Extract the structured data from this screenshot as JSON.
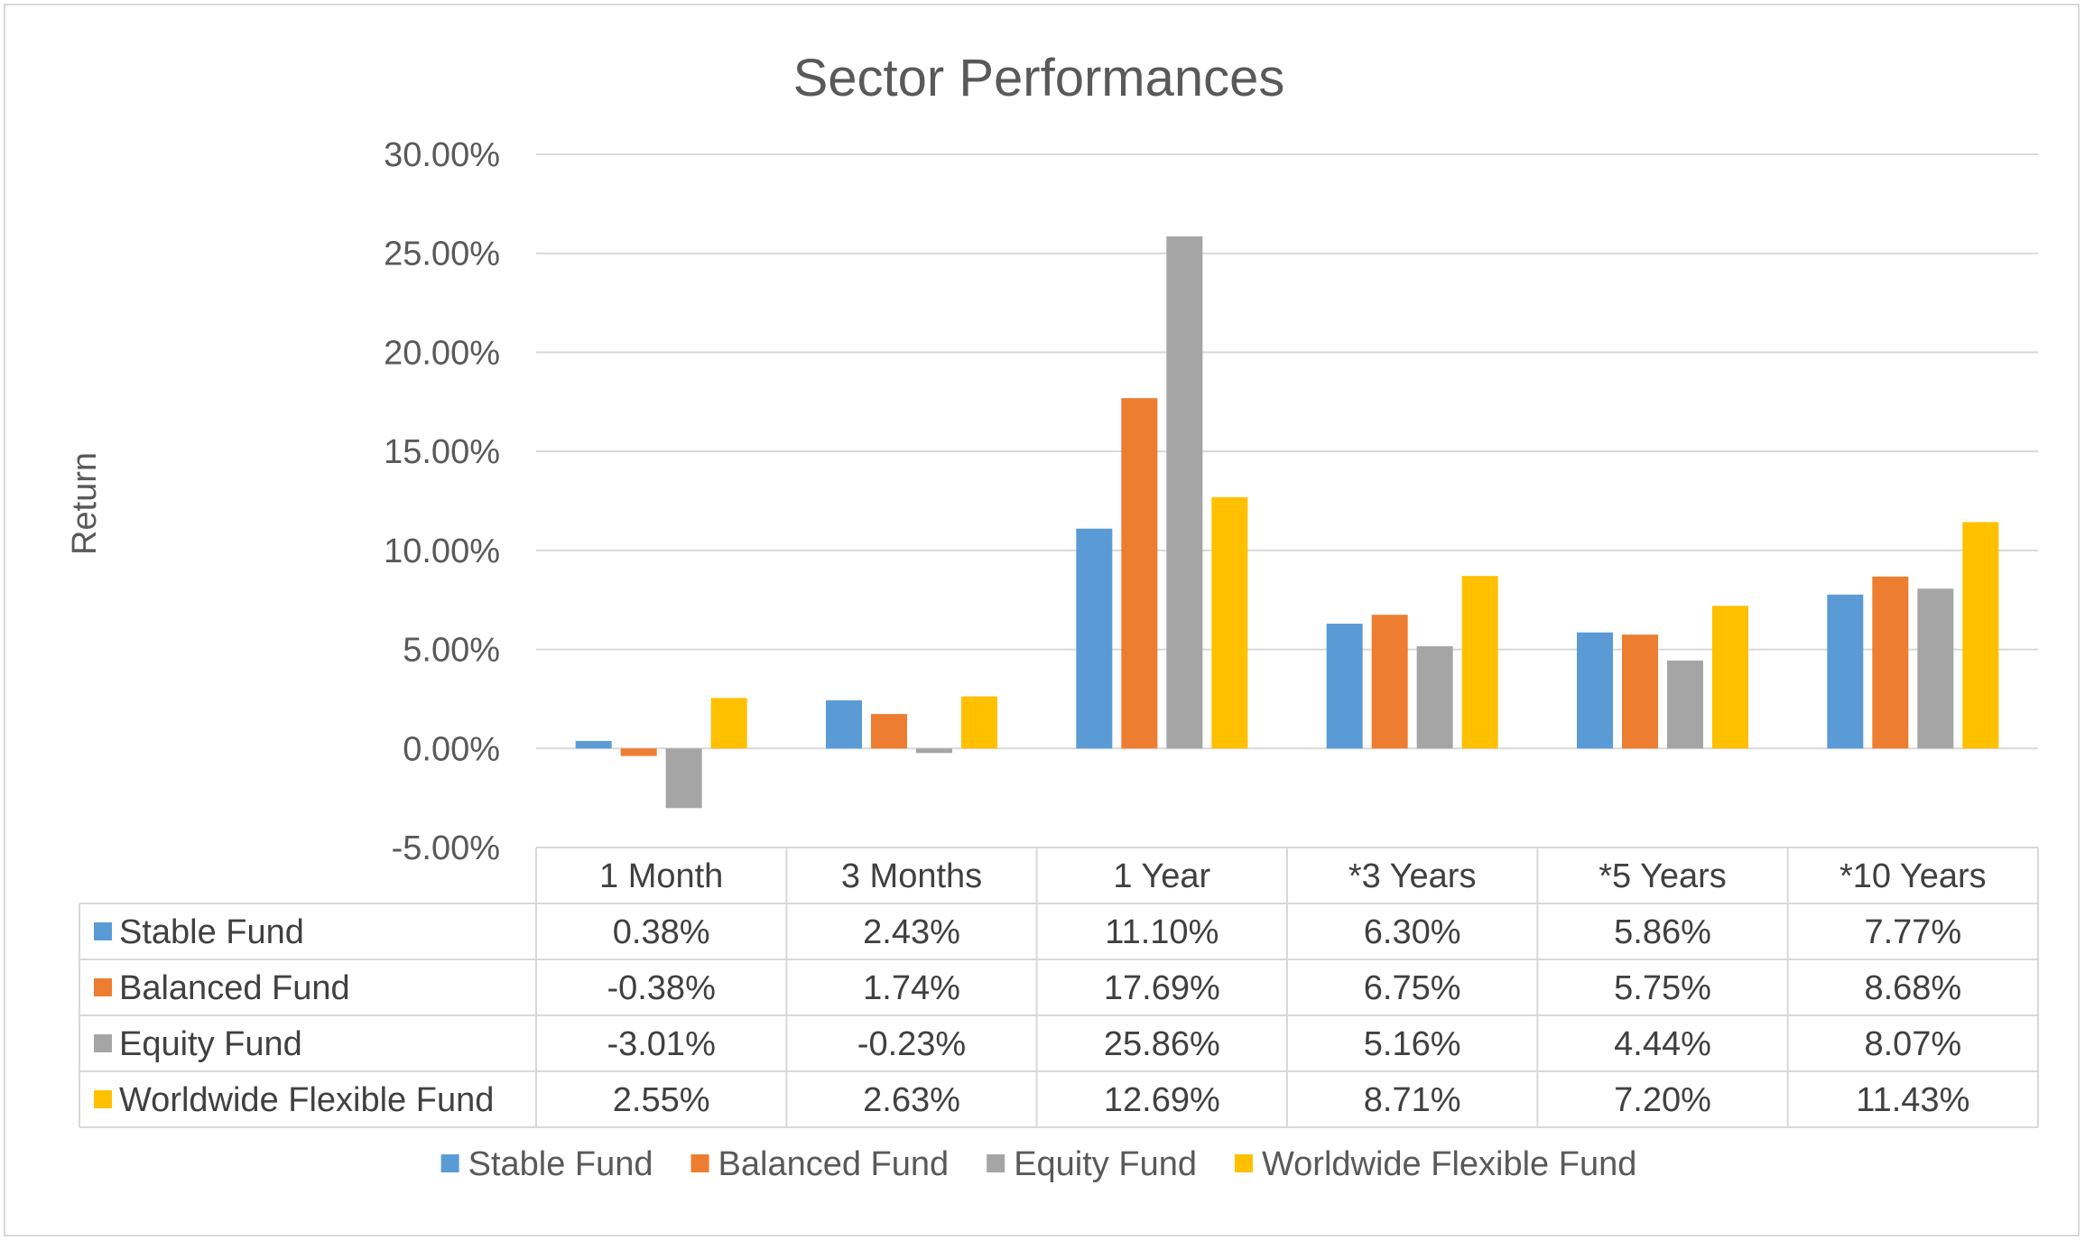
{
  "chart_data": {
    "type": "bar",
    "title": "Sector Performances",
    "xlabel": "",
    "ylabel": "Return",
    "ylim": [
      -0.05,
      0.3
    ],
    "yticks": [
      "-5.00%",
      "0.00%",
      "5.00%",
      "10.00%",
      "15.00%",
      "20.00%",
      "25.00%",
      "30.00%"
    ],
    "ytick_values": [
      -0.05,
      0.0,
      0.05,
      0.1,
      0.15,
      0.2,
      0.25,
      0.3
    ],
    "grid": true,
    "legend_position": "bottom",
    "data_table": true,
    "categories": [
      "1 Month",
      "3 Months",
      "1 Year",
      "*3 Years",
      "*5 Years",
      "*10 Years"
    ],
    "series": [
      {
        "name": "Stable Fund",
        "color": "#5b9bd5",
        "values": [
          0.0038,
          0.0243,
          0.111,
          0.063,
          0.0586,
          0.0777
        ],
        "labels": [
          "0.38%",
          "2.43%",
          "11.10%",
          "6.30%",
          "5.86%",
          "7.77%"
        ]
      },
      {
        "name": "Balanced Fund",
        "color": "#ed7d31",
        "values": [
          -0.0038,
          0.0174,
          0.1769,
          0.0675,
          0.0575,
          0.0868
        ],
        "labels": [
          "-0.38%",
          "1.74%",
          "17.69%",
          "6.75%",
          "5.75%",
          "8.68%"
        ]
      },
      {
        "name": "Equity Fund",
        "color": "#a5a5a5",
        "values": [
          -0.0301,
          -0.0023,
          0.2586,
          0.0516,
          0.0444,
          0.0807
        ],
        "labels": [
          "-3.01%",
          "-0.23%",
          "25.86%",
          "5.16%",
          "4.44%",
          "8.07%"
        ]
      },
      {
        "name": "Worldwide Flexible Fund",
        "color": "#ffc000",
        "values": [
          0.0255,
          0.0263,
          0.1269,
          0.0871,
          0.072,
          0.1143
        ],
        "labels": [
          "2.55%",
          "2.63%",
          "12.69%",
          "8.71%",
          "7.20%",
          "11.43%"
        ]
      }
    ]
  }
}
